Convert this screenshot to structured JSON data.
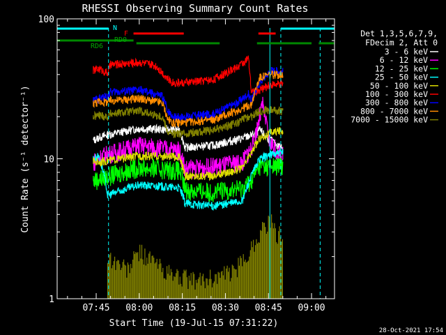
{
  "chart_data": {
    "type": "line",
    "title": "RHESSI Observing Summary Count Rates",
    "xlabel": "Start Time (19-Jul-15 07:31:22)",
    "ylabel": "Count Rate (s⁻¹ detector⁻¹)",
    "yscale": "log",
    "ylim": [
      1,
      100
    ],
    "xlim_minutes": [
      31.4,
      128
    ],
    "x_tick_labels": [
      "07:45",
      "08:00",
      "08:15",
      "08:30",
      "08:45",
      "09:00"
    ],
    "x_tick_minutes": [
      45,
      60,
      75,
      90,
      105,
      120
    ],
    "y_tick_labels": [
      "1",
      "10",
      "100"
    ],
    "y_tick_values": [
      1,
      10,
      100
    ],
    "legend_header": [
      "Det 1,3,5,6,7,9,",
      "FDecim 2, Att 0"
    ],
    "series": [
      {
        "name": "3 - 6 keV",
        "color": "#ffffff",
        "points": [
          [
            44,
            13.5
          ],
          [
            46,
            14.2
          ],
          [
            49,
            14.8
          ],
          [
            60,
            16.5
          ],
          [
            74,
            16
          ],
          [
            76,
            12
          ],
          [
            86,
            12.5
          ],
          [
            96,
            14
          ],
          [
            100,
            15
          ],
          [
            102,
            16
          ],
          [
            104,
            14.5
          ],
          [
            108,
            12.5
          ],
          [
            110,
            12
          ]
        ]
      },
      {
        "name": "6 - 12 keV",
        "color": "#ff00ff",
        "points": [
          [
            44,
            9.5
          ],
          [
            46,
            10.2
          ],
          [
            49,
            10.8
          ],
          [
            60,
            12.5
          ],
          [
            74,
            11.5
          ],
          [
            76,
            8.5
          ],
          [
            86,
            8.8
          ],
          [
            96,
            9.5
          ],
          [
            100,
            13
          ],
          [
            103,
            24
          ],
          [
            105,
            14
          ],
          [
            108,
            11
          ],
          [
            110,
            10.5
          ]
        ]
      },
      {
        "name": "12 - 25 keV",
        "color": "#00ff00",
        "points": [
          [
            44,
            7
          ],
          [
            46,
            7.2
          ],
          [
            49,
            7.5
          ],
          [
            60,
            8.7
          ],
          [
            74,
            8.3
          ],
          [
            76,
            6
          ],
          [
            86,
            5.8
          ],
          [
            96,
            6.2
          ],
          [
            99,
            7
          ],
          [
            102,
            9
          ],
          [
            106,
            8.8
          ],
          [
            110,
            9
          ]
        ]
      },
      {
        "name": "25 - 50 keV",
        "color": "#00ffff",
        "points": [
          [
            44,
            10
          ],
          [
            46,
            10.5
          ],
          [
            49,
            5.5
          ],
          [
            60,
            6.5
          ],
          [
            74,
            6.2
          ],
          [
            76,
            4.8
          ],
          [
            86,
            4.6
          ],
          [
            96,
            5
          ],
          [
            99,
            7.5
          ],
          [
            102,
            10
          ],
          [
            106,
            10.8
          ],
          [
            110,
            11
          ]
        ]
      },
      {
        "name": "50 - 100 keV",
        "color": "#dddd00",
        "points": [
          [
            44,
            9.6
          ],
          [
            46,
            9.5
          ],
          [
            49,
            9.7
          ],
          [
            60,
            10.5
          ],
          [
            74,
            10.3
          ],
          [
            76,
            7.5
          ],
          [
            86,
            7.6
          ],
          [
            96,
            8.5
          ],
          [
            99,
            11
          ],
          [
            102,
            14
          ],
          [
            106,
            15.5
          ],
          [
            110,
            16
          ]
        ]
      },
      {
        "name": "100 - 300 keV",
        "color": "#ff0000",
        "points": [
          [
            44,
            43
          ],
          [
            46,
            44
          ],
          [
            49,
            41
          ],
          [
            50,
            47
          ],
          [
            60,
            49
          ],
          [
            66,
            46
          ],
          [
            70,
            37
          ],
          [
            72,
            35
          ],
          [
            76,
            35
          ],
          [
            86,
            37
          ],
          [
            94,
            45
          ],
          [
            98,
            52
          ],
          [
            99,
            30
          ],
          [
            102,
            31
          ],
          [
            106,
            34
          ],
          [
            110,
            34
          ]
        ]
      },
      {
        "name": "300 - 800 keV",
        "color": "#0000ff",
        "points": [
          [
            44,
            26
          ],
          [
            46,
            27
          ],
          [
            49,
            28
          ],
          [
            50,
            30
          ],
          [
            60,
            31
          ],
          [
            68,
            28
          ],
          [
            70,
            22
          ],
          [
            72,
            20
          ],
          [
            76,
            20
          ],
          [
            86,
            21
          ],
          [
            94,
            25
          ],
          [
            98,
            29
          ],
          [
            99,
            26
          ],
          [
            102,
            35
          ],
          [
            106,
            43
          ],
          [
            110,
            42
          ]
        ]
      },
      {
        "name": "800 - 7000 keV",
        "color": "#ff8c00",
        "points": [
          [
            44,
            25
          ],
          [
            46,
            25.5
          ],
          [
            49,
            25.5
          ],
          [
            50,
            26
          ],
          [
            60,
            27
          ],
          [
            68,
            25
          ],
          [
            70,
            19
          ],
          [
            72,
            18
          ],
          [
            76,
            18.2
          ],
          [
            86,
            19
          ],
          [
            94,
            22
          ],
          [
            98,
            24
          ],
          [
            99,
            24
          ],
          [
            102,
            38
          ],
          [
            106,
            40
          ],
          [
            110,
            40
          ]
        ]
      },
      {
        "name": "7000 - 15000 keV",
        "color": "#808000",
        "points": [
          [
            44,
            20
          ],
          [
            46,
            20.5
          ],
          [
            49,
            20
          ],
          [
            50,
            21
          ],
          [
            60,
            22
          ],
          [
            68,
            20
          ],
          [
            70,
            15.5
          ],
          [
            72,
            15
          ],
          [
            76,
            15.2
          ],
          [
            86,
            16
          ],
          [
            94,
            18
          ],
          [
            98,
            20
          ],
          [
            99,
            20
          ],
          [
            102,
            22
          ],
          [
            106,
            22.5
          ],
          [
            110,
            22
          ]
        ]
      }
    ],
    "series_low": {
      "name": "",
      "color": "#808000",
      "points": [
        [
          49,
          2.1
        ],
        [
          56,
          1.7
        ],
        [
          60,
          2.3
        ],
        [
          70,
          1.6
        ],
        [
          80,
          1.4
        ],
        [
          92,
          1.6
        ],
        [
          96,
          1.9
        ],
        [
          100,
          2.6
        ],
        [
          104,
          3.6
        ],
        [
          106,
          3.7
        ],
        [
          108,
          2.8
        ],
        [
          110,
          3.3
        ]
      ]
    },
    "flags": {
      "n_label": "N",
      "f_label": "F",
      "rd0_label": "RD0",
      "rd6_label": "RD6",
      "n_segments": [
        [
          31.4,
          49.3
        ],
        [
          109.3,
          128
        ]
      ],
      "f_segments": [
        [
          58,
          75.5
        ],
        [
          101.5,
          107.5
        ]
      ],
      "rd_segments": [
        [
          31.4,
          58
        ],
        [
          59,
          88
        ],
        [
          101,
          120
        ],
        [
          122.5,
          128
        ]
      ]
    },
    "dashed_vlines_minutes": [
      49.3,
      109.3,
      123
    ],
    "solid_vlines_minutes": [
      105.5
    ],
    "grid": false
  },
  "footer": {
    "date_stamp": "28-Oct-2021 17:54"
  }
}
